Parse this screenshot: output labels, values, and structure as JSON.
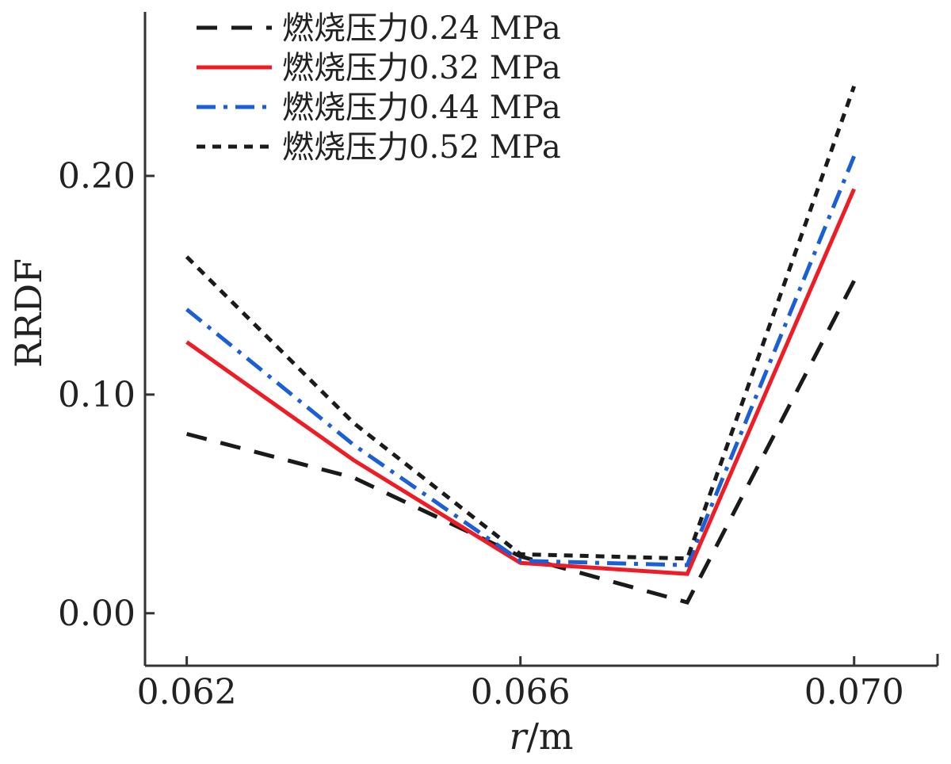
{
  "chart_data": {
    "type": "line",
    "title": "",
    "xlabel_italic": "r",
    "xlabel_rest": "/m",
    "ylabel": "RRDF",
    "xlim": [
      0.0615,
      0.071
    ],
    "ylim": [
      -0.024,
      0.275
    ],
    "x_ticks": [
      0.062,
      0.066,
      0.07
    ],
    "x_tick_labels": [
      "0.062",
      "0.066",
      "0.070"
    ],
    "y_ticks": [
      0.0,
      0.1,
      0.2
    ],
    "y_tick_labels": [
      "0.00",
      "0.10",
      "0.20"
    ],
    "grid": false,
    "legend_position": "top-left",
    "series": [
      {
        "name": "燃烧压力0.24 MPa",
        "color": "#1a1a1a",
        "dash": "long-dash",
        "x": [
          0.062,
          0.064,
          0.066,
          0.068,
          0.07
        ],
        "y": [
          0.082,
          0.062,
          0.026,
          0.005,
          0.152
        ]
      },
      {
        "name": "燃烧压力0.32 MPa",
        "color": "#ee1c25",
        "dash": "solid",
        "x": [
          0.062,
          0.064,
          0.066,
          0.068,
          0.07
        ],
        "y": [
          0.124,
          0.07,
          0.023,
          0.018,
          0.194
        ]
      },
      {
        "name": "燃烧压力0.44 MPa",
        "color": "#1a5fd6",
        "dash": "dash-dot",
        "x": [
          0.062,
          0.064,
          0.066,
          0.068,
          0.07
        ],
        "y": [
          0.139,
          0.077,
          0.024,
          0.022,
          0.209
        ]
      },
      {
        "name": "燃烧压力0.52 MPa",
        "color": "#1a1a1a",
        "dash": "short-dash",
        "x": [
          0.062,
          0.064,
          0.066,
          0.068,
          0.07
        ],
        "y": [
          0.163,
          0.087,
          0.027,
          0.025,
          0.241
        ]
      }
    ]
  }
}
